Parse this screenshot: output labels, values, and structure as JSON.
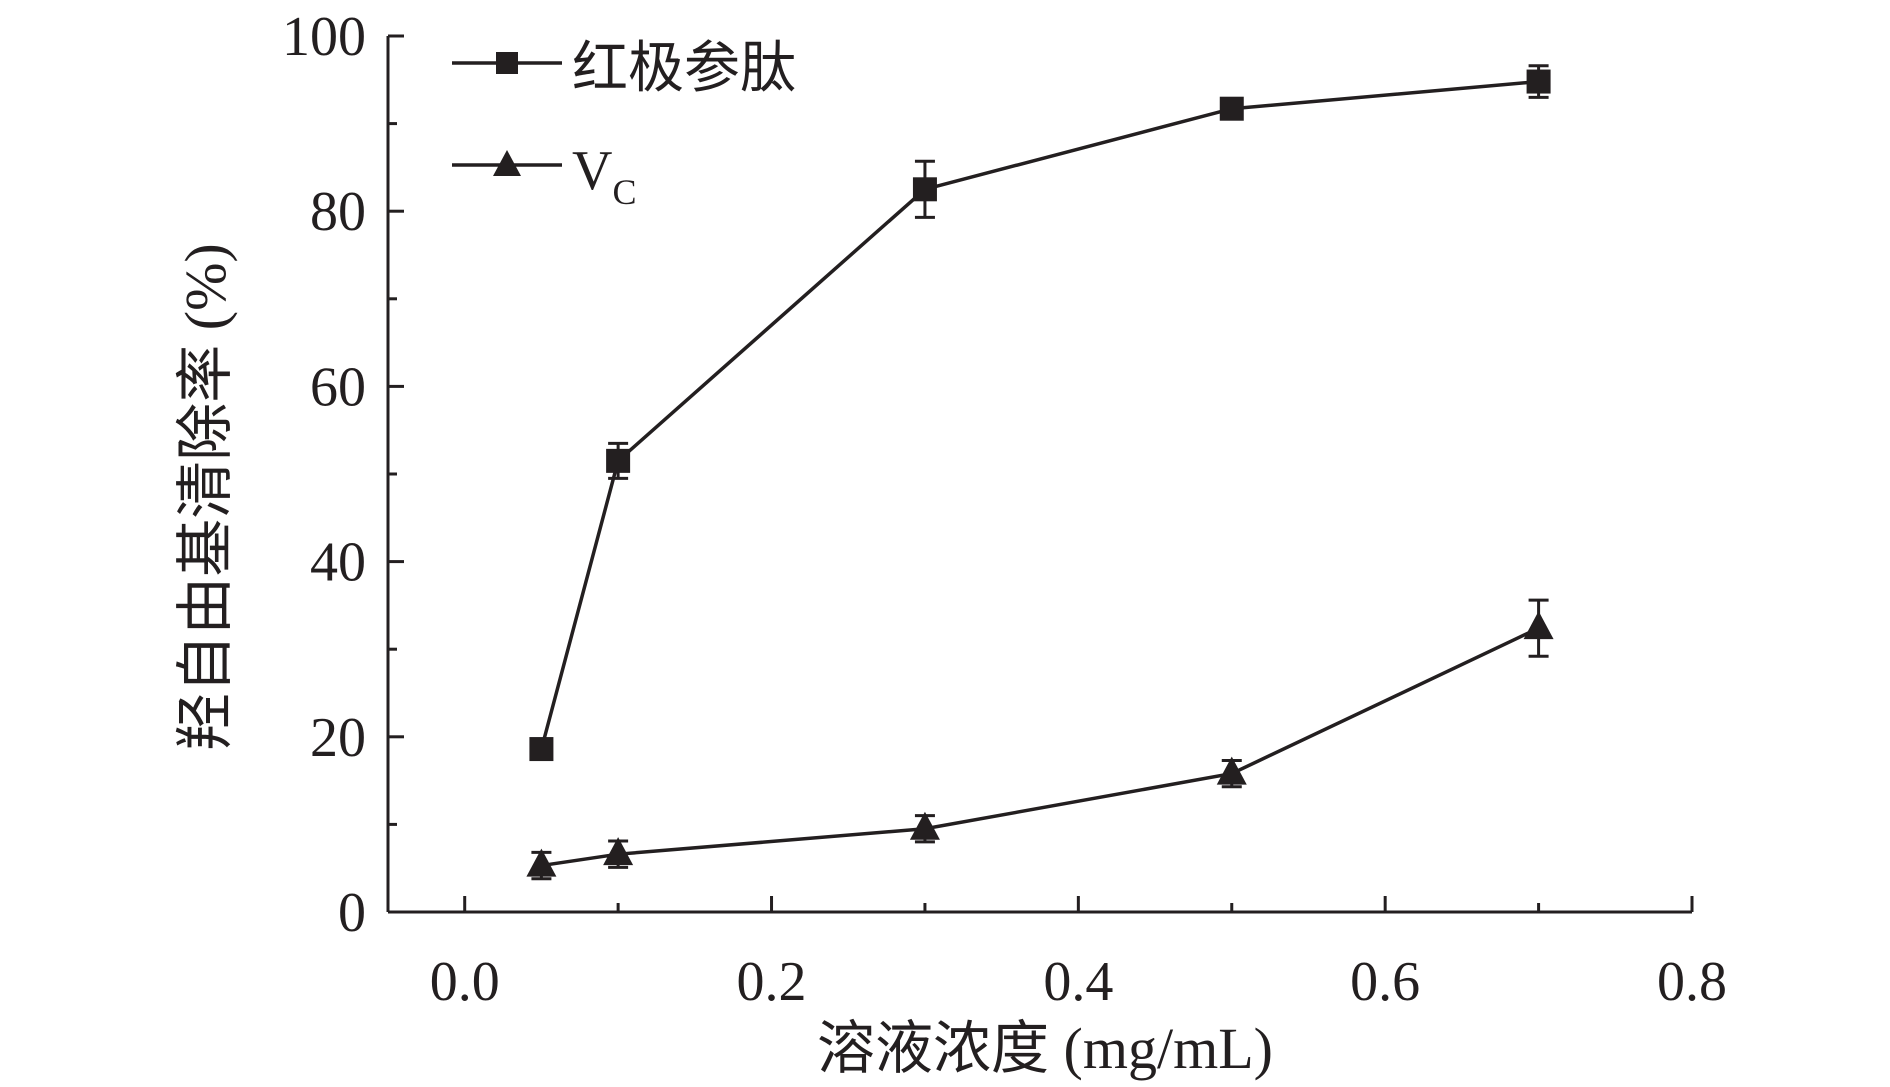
{
  "chart_data": {
    "type": "line",
    "xlabel": "溶液浓度 (mg/mL)",
    "ylabel": "羟自由基清除率 (%)",
    "xlim": [
      -0.05,
      0.8
    ],
    "ylim": [
      0,
      100
    ],
    "x_ticks": [
      "0.0",
      "0.2",
      "0.4",
      "0.6",
      "0.8"
    ],
    "y_ticks": [
      "0",
      "20",
      "40",
      "60",
      "80",
      "100"
    ],
    "x_tick_values": [
      0.0,
      0.2,
      0.4,
      0.6,
      0.8
    ],
    "y_tick_values": [
      0,
      20,
      40,
      60,
      80,
      100
    ],
    "grid": false,
    "legend_position": "top-left",
    "series": [
      {
        "name": "红极参肽",
        "marker": "square",
        "color": "#231f20",
        "x": [
          0.05,
          0.1,
          0.3,
          0.5,
          0.7
        ],
        "y": [
          18.6,
          51.5,
          82.5,
          91.7,
          94.8
        ],
        "error": [
          0.5,
          2.0,
          3.2,
          0.8,
          1.8
        ]
      },
      {
        "name": "V",
        "name_subscript": "C",
        "marker": "triangle",
        "color": "#231f20",
        "x": [
          0.05,
          0.1,
          0.3,
          0.5,
          0.7
        ],
        "y": [
          5.3,
          6.6,
          9.5,
          15.8,
          32.4
        ],
        "error": [
          1.5,
          1.5,
          1.5,
          1.5,
          3.2
        ]
      }
    ]
  }
}
